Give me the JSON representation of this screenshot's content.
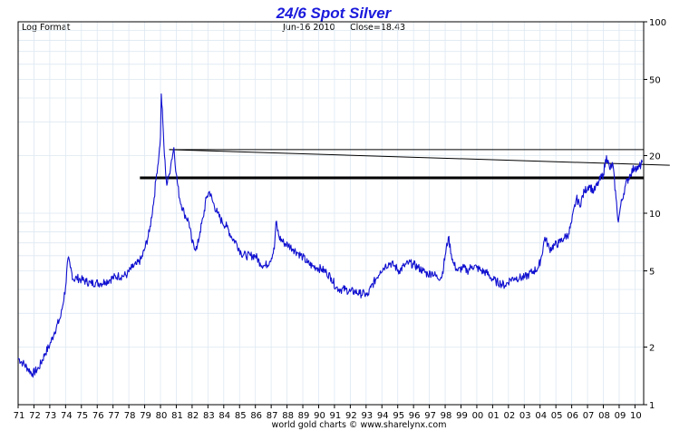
{
  "header": {
    "title": "24/6 Spot Silver",
    "scale_label": "Log Format",
    "date_label": "Jun-16  2010",
    "close_label": "Close=18.43",
    "footer": "world gold charts © www.sharelynx.com"
  },
  "colors": {
    "series": "#1010d0",
    "trendline": "#000000",
    "grid": "#dde8f2",
    "title": "#1a1adc"
  },
  "chart_data": {
    "type": "line",
    "title": "24/6 Spot Silver",
    "xlabel": "",
    "ylabel": "",
    "y_scale": "log",
    "ylim": [
      1,
      100
    ],
    "xlim": [
      1971,
      2010.55
    ],
    "y_ticks": [
      "1",
      "2",
      "5",
      "10",
      "20",
      "50",
      "100"
    ],
    "x_ticks": [
      "71",
      "72",
      "73",
      "74",
      "75",
      "76",
      "77",
      "78",
      "79",
      "80",
      "81",
      "82",
      "83",
      "84",
      "85",
      "86",
      "87",
      "88",
      "89",
      "90",
      "91",
      "92",
      "93",
      "94",
      "95",
      "96",
      "97",
      "98",
      "99",
      "00",
      "01",
      "02",
      "03",
      "04",
      "05",
      "06",
      "07",
      "08",
      "09",
      "10"
    ],
    "grid": true,
    "legend": "none",
    "series": [
      {
        "x": [
          1971.0,
          1971.3,
          1971.6,
          1971.9,
          1972.3,
          1972.7,
          1973.0,
          1973.3,
          1973.7,
          1974.0,
          1974.15,
          1974.3,
          1974.5,
          1974.7,
          1975.0,
          1975.3,
          1975.6,
          1975.9,
          1976.2,
          1976.5,
          1976.8,
          1977.0,
          1977.3,
          1977.6,
          1977.9,
          1978.2,
          1978.5,
          1978.8,
          1979.0,
          1979.3,
          1979.6,
          1979.75,
          1979.9,
          1980.0,
          1980.05,
          1980.15,
          1980.25,
          1980.4,
          1980.55,
          1980.7,
          1980.85,
          1981.0,
          1981.2,
          1981.5,
          1981.8,
          1982.0,
          1982.3,
          1982.5,
          1982.7,
          1982.9,
          1983.1,
          1983.3,
          1983.6,
          1983.9,
          1984.2,
          1984.5,
          1984.8,
          1985.1,
          1985.4,
          1985.7,
          1986.0,
          1986.3,
          1986.6,
          1986.9,
          1987.2,
          1987.3,
          1987.5,
          1987.8,
          1988.1,
          1988.4,
          1988.7,
          1989.0,
          1989.3,
          1989.6,
          1989.9,
          1990.2,
          1990.5,
          1990.8,
          1991.1,
          1991.4,
          1991.7,
          1992.0,
          1992.3,
          1992.6,
          1992.9,
          1993.1,
          1993.3,
          1993.6,
          1993.9,
          1994.2,
          1994.5,
          1994.8,
          1995.1,
          1995.4,
          1995.7,
          1996.0,
          1996.3,
          1996.6,
          1996.9,
          1997.2,
          1997.5,
          1997.8,
          1998.0,
          1998.2,
          1998.5,
          1998.8,
          1999.1,
          1999.4,
          1999.7,
          2000.0,
          2000.3,
          2000.6,
          2000.9,
          2001.2,
          2001.5,
          2001.8,
          2002.1,
          2002.4,
          2002.7,
          2003.0,
          2003.3,
          2003.6,
          2003.9,
          2004.1,
          2004.3,
          2004.6,
          2004.9,
          2005.2,
          2005.5,
          2005.8,
          2006.0,
          2006.3,
          2006.5,
          2006.8,
          2007.1,
          2007.4,
          2007.7,
          2008.0,
          2008.2,
          2008.4,
          2008.6,
          2008.8,
          2008.95,
          2009.1,
          2009.4,
          2009.7,
          2010.0,
          2010.2,
          2010.46
        ],
        "values": [
          1.75,
          1.65,
          1.55,
          1.45,
          1.55,
          1.85,
          2.05,
          2.4,
          2.9,
          4.1,
          5.8,
          5.2,
          4.5,
          4.6,
          4.5,
          4.4,
          4.3,
          4.35,
          4.3,
          4.4,
          4.5,
          4.6,
          4.7,
          4.7,
          4.8,
          5.2,
          5.4,
          5.8,
          6.5,
          8.0,
          12.0,
          16.0,
          20.0,
          25.0,
          42.0,
          30.0,
          20.0,
          14.0,
          16.0,
          19.0,
          22.0,
          16.0,
          12.0,
          10.0,
          9.0,
          7.0,
          6.5,
          8.0,
          9.5,
          12.0,
          13.0,
          11.5,
          10.0,
          9.0,
          8.5,
          7.5,
          7.0,
          6.2,
          6.0,
          6.0,
          6.0,
          5.5,
          5.3,
          5.6,
          6.5,
          9.0,
          7.5,
          7.0,
          6.8,
          6.5,
          6.2,
          5.9,
          5.5,
          5.3,
          5.2,
          5.1,
          4.9,
          4.6,
          4.1,
          4.0,
          4.0,
          3.9,
          3.9,
          3.8,
          3.8,
          3.7,
          4.1,
          4.5,
          5.0,
          5.3,
          5.5,
          5.3,
          5.0,
          5.3,
          5.5,
          5.4,
          5.2,
          5.0,
          4.8,
          4.9,
          4.6,
          4.7,
          6.0,
          7.5,
          5.5,
          5.0,
          5.2,
          5.0,
          5.3,
          5.2,
          5.0,
          4.9,
          4.6,
          4.4,
          4.3,
          4.2,
          4.5,
          4.6,
          4.6,
          4.6,
          4.8,
          5.0,
          5.2,
          6.0,
          7.5,
          6.5,
          6.8,
          7.0,
          7.4,
          7.8,
          9.0,
          12.0,
          11.0,
          13.0,
          14.0,
          13.0,
          14.5,
          16.0,
          20.0,
          17.0,
          18.0,
          12.0,
          9.0,
          11.0,
          14.0,
          16.0,
          17.5,
          17.0,
          18.43
        ]
      }
    ],
    "trendlines": [
      {
        "label": "resistance-thin",
        "x": [
          1980.55,
          2010.55
        ],
        "values": [
          21.5,
          21.5
        ]
      },
      {
        "label": "resistance-sloped",
        "x": [
          1980.55,
          2012.2
        ],
        "values": [
          21.5,
          17.8
        ]
      },
      {
        "label": "support-thick",
        "x": [
          1978.7,
          2010.55
        ],
        "values": [
          15.3,
          15.3
        ]
      }
    ]
  }
}
